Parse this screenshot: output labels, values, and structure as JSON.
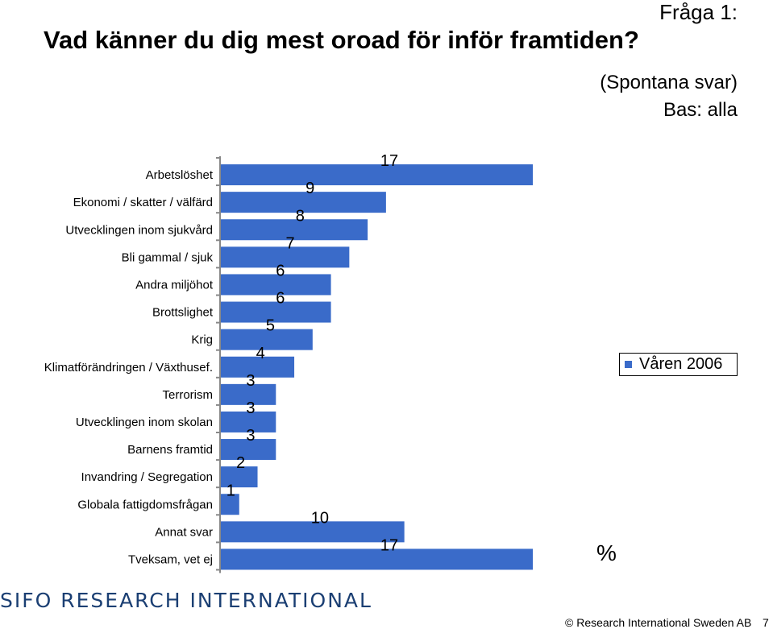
{
  "header": {
    "question_number": "Fråga 1:",
    "title": "Vad känner du dig mest oroad för inför framtiden?",
    "subtitle": "(Spontana svar)",
    "base": "Bas: alla"
  },
  "chart_data": {
    "type": "bar",
    "orientation": "horizontal",
    "categories": [
      "Arbetslöshet",
      "Ekonomi / skatter / välfärd",
      "Utvecklingen inom sjukvård",
      "Bli gammal / sjuk",
      "Andra miljöhot",
      "Brottslighet",
      "Krig",
      "Klimatförändringen / Växthusef.",
      "Terrorism",
      "Utvecklingen inom skolan",
      "Barnens framtid",
      "Invandring / Segregation",
      "Globala fattigdomsfrågan",
      "Annat svar",
      "Tveksam, vet ej"
    ],
    "series": [
      {
        "name": "Våren 2006",
        "values": [
          17,
          9,
          8,
          7,
          6,
          6,
          5,
          4,
          3,
          3,
          3,
          2,
          1,
          10,
          17
        ]
      }
    ],
    "xlim": [
      0,
      17
    ],
    "grid": false,
    "legend_position": "right",
    "unit": "%",
    "bar_color": "#3a6bc9"
  },
  "footer": {
    "logo_text": "SIFO RESEARCH INTERNATIONAL",
    "copyright": "© Research International Sweden AB",
    "page_number": "7"
  }
}
